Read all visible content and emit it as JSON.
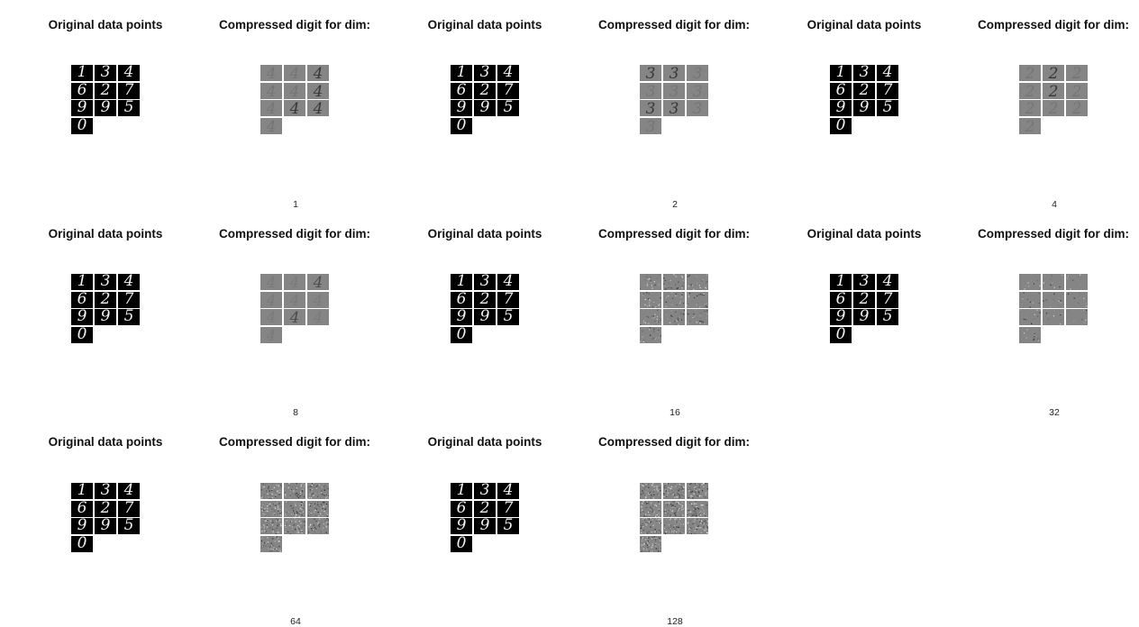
{
  "chart_data": {
    "type": "image-grid",
    "original_title": "Original data points",
    "compressed_title": "Compressed digit for dim:",
    "original_digits": [
      "1",
      "3",
      "4",
      "6",
      "2",
      "7",
      "9",
      "9",
      "5",
      "0"
    ],
    "panels": [
      {
        "dim": "1"
      },
      {
        "dim": "2"
      },
      {
        "dim": "4"
      },
      {
        "dim": "8"
      },
      {
        "dim": "16"
      },
      {
        "dim": "32"
      },
      {
        "dim": "64"
      },
      {
        "dim": "128"
      }
    ],
    "colors": {
      "background": "#ffffff",
      "original_tile": "#000000",
      "compressed_tile": "#858585"
    }
  }
}
